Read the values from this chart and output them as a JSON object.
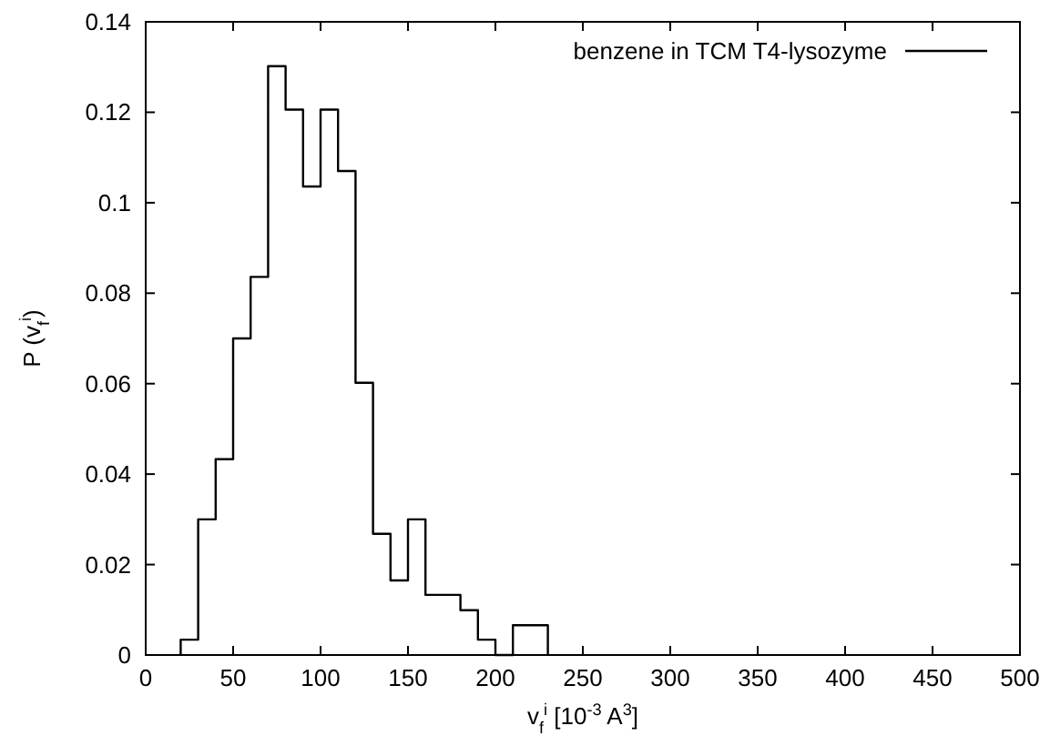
{
  "chart_data": {
    "type": "histogram",
    "xlabel": "v$_{f}$$^{i}$ [10$^{-3}$ A$^{3}$]",
    "ylabel": "P (v$_{f}$$^{i}$)",
    "bins": [
      20,
      30,
      40,
      50,
      60,
      70,
      80,
      90,
      100,
      110,
      120,
      130,
      140,
      150,
      160,
      170,
      180,
      190,
      200,
      210,
      220,
      230
    ],
    "series": [
      {
        "name": "benzene in TCM T4-lysozyme",
        "color": "#000000",
        "values": [
          0.0034,
          0.03,
          0.0433,
          0.07,
          0.0836,
          0.1302,
          0.1206,
          0.1036,
          0.1206,
          0.107,
          0.0602,
          0.0268,
          0.0165,
          0.03,
          0.0133,
          0.0133,
          0.0099,
          0.0034,
          0,
          0.0066,
          0.0066
        ]
      }
    ],
    "xlim": [
      0,
      500
    ],
    "xticks": [
      0,
      50,
      100,
      150,
      200,
      250,
      300,
      350,
      400,
      450,
      500
    ],
    "ylim": [
      0,
      0.14
    ],
    "yticks": [
      0,
      {
        "value": 0.02,
        "label": "0.02"
      },
      {
        "value": 0.04,
        "label": "0.04"
      },
      {
        "value": 0.06,
        "label": "0.06"
      },
      {
        "value": 0.08,
        "label": "0.08"
      },
      0.1,
      0.12,
      0.14
    ],
    "legend": "top right",
    "line_style": "solid"
  }
}
